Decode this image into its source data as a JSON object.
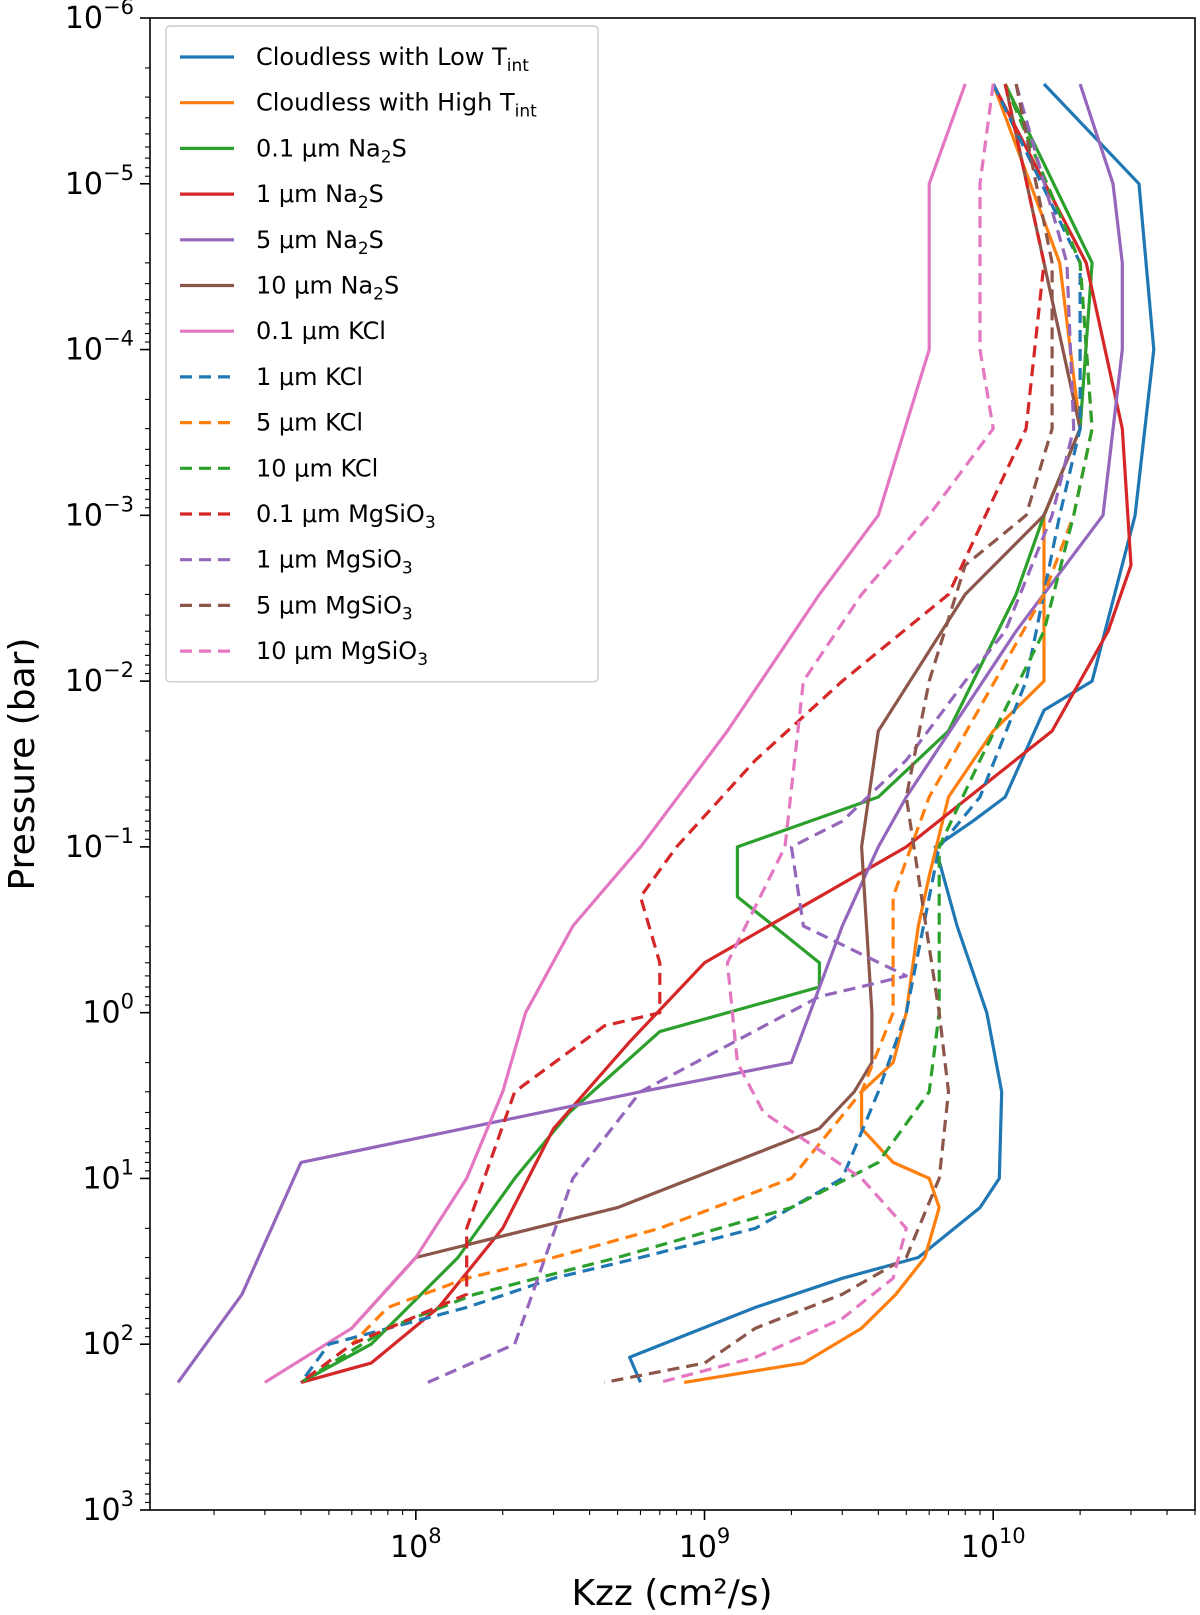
{
  "chart_data": {
    "type": "line",
    "title": "",
    "xlabel": "Kzz (cm²/s)",
    "ylabel": "Pressure (bar)",
    "xscale": "log",
    "yscale": "log",
    "xlim": [
      12000000,
      50000000000
    ],
    "ylim": [
      1000,
      1e-06
    ],
    "y_inverted": true,
    "x_ticks": [
      {
        "value": 100000000,
        "base": "10",
        "exp": "8"
      },
      {
        "value": 1000000000,
        "base": "10",
        "exp": "9"
      },
      {
        "value": 10000000000,
        "base": "10",
        "exp": "10"
      }
    ],
    "y_ticks": [
      {
        "value": 1e-06,
        "base": "10",
        "exp": "−6"
      },
      {
        "value": 1e-05,
        "base": "10",
        "exp": "−5"
      },
      {
        "value": 0.0001,
        "base": "10",
        "exp": "−4"
      },
      {
        "value": 0.001,
        "base": "10",
        "exp": "−3"
      },
      {
        "value": 0.01,
        "base": "10",
        "exp": "−2"
      },
      {
        "value": 0.1,
        "base": "10",
        "exp": "−1"
      },
      {
        "value": 1,
        "base": "10",
        "exp": "0"
      },
      {
        "value": 10,
        "base": "10",
        "exp": "1"
      },
      {
        "value": 100,
        "base": "10",
        "exp": "2"
      },
      {
        "value": 1000,
        "base": "10",
        "exp": "3"
      }
    ],
    "legend_position": "top-left",
    "series": [
      {
        "name": "Cloudless with Low T_int",
        "label_main": "Cloudless with Low T",
        "label_sub": "int",
        "color": "#1f77b4",
        "dash": false,
        "kzz": [
          15000000000.0,
          32000000000.0,
          36000000000.0,
          31000000000.0,
          22000000000.0,
          15000000000.0,
          11000000000.0,
          8500000000.0,
          6300000000.0,
          7500000000.0,
          9500000000.0,
          10700000000.0,
          10500000000.0,
          9000000000.0,
          5500000000.0,
          3000000000.0,
          1500000000.0,
          550000000.0,
          600000000.0
        ],
        "p": [
          2.5e-06,
          1e-05,
          0.0001,
          0.001,
          0.01,
          0.015,
          0.05,
          0.07,
          0.1,
          0.3,
          1,
          3,
          10,
          15,
          30,
          40,
          60,
          120,
          170
        ]
      },
      {
        "name": "Cloudless with High T_int",
        "label_main": "Cloudless with High T",
        "label_sub": "int",
        "color": "#ff7f0e",
        "dash": false,
        "kzz": [
          10000000000.0,
          17000000000.0,
          20000000000.0,
          15000000000.0,
          15000000000.0,
          10000000000.0,
          7000000000.0,
          6000000000.0,
          5500000000.0,
          5000000000.0,
          4500000000.0,
          3500000000.0,
          3500000000.0,
          4500000000.0,
          6000000000.0,
          6500000000.0,
          5800000000.0,
          4600000000.0,
          3500000000.0,
          2200000000.0,
          850000000.0
        ],
        "p": [
          2.5e-06,
          3e-05,
          0.0003,
          0.001,
          0.01,
          0.02,
          0.05,
          0.15,
          0.3,
          1,
          2,
          3,
          5,
          8,
          10,
          15,
          30,
          50,
          80,
          130,
          170
        ]
      },
      {
        "name": "0.1 μm Na2S",
        "label_main": "0.1 μm Na",
        "label_sub": "2",
        "label_tail": "S",
        "color": "#2ca02c",
        "dash": false,
        "kzz": [
          11000000000.0,
          22000000000.0,
          20000000000.0,
          15000000000.0,
          12000000000.0,
          7000000000.0,
          4000000000.0,
          1300000000.0,
          1300000000.0,
          2500000000.0,
          2500000000.0,
          700000000.0,
          340000000.0,
          220000000.0,
          140000000.0,
          70000000.0,
          40000000.0
        ],
        "p": [
          2.5e-06,
          3e-05,
          0.0003,
          0.001,
          0.003,
          0.02,
          0.05,
          0.1,
          0.2,
          0.5,
          0.7,
          1.3,
          4,
          10,
          30,
          100,
          170
        ]
      },
      {
        "name": "1 μm Na2S",
        "label_main": "1 μm Na",
        "label_sub": "2",
        "label_tail": "S",
        "color": "#d62728",
        "dash": false,
        "kzz": [
          10000000000.0,
          21000000000.0,
          28000000000.0,
          30000000000.0,
          25000000000.0,
          16000000000.0,
          5000000000.0,
          2500000000.0,
          1000000000.0,
          550000000.0,
          300000000.0,
          200000000.0,
          120000000.0,
          70000000.0,
          40000000.0
        ],
        "p": [
          2.5e-06,
          3e-05,
          0.0003,
          0.002,
          0.005,
          0.02,
          0.1,
          0.2,
          0.5,
          1.5,
          5,
          20,
          60,
          130,
          170
        ]
      },
      {
        "name": "5 μm Na2S",
        "label_main": "5 μm Na",
        "label_sub": "2",
        "label_tail": "S",
        "color": "#9467bd",
        "dash": false,
        "kzz": [
          20000000000.0,
          26000000000.0,
          28000000000.0,
          28000000000.0,
          24000000000.0,
          12000000000.0,
          5000000000.0,
          4000000000.0,
          3000000000.0,
          2000000000.0,
          600000000.0,
          40000000.0,
          25000000.0,
          15000000.0
        ],
        "p": [
          2.5e-06,
          1e-05,
          3e-05,
          0.0001,
          0.001,
          0.005,
          0.05,
          0.1,
          0.3,
          2,
          3,
          8,
          50,
          170
        ]
      },
      {
        "name": "10 μm Na2S",
        "label_main": "10 μm Na",
        "label_sub": "2",
        "label_tail": "S",
        "color": "#8c564b",
        "dash": false,
        "kzz": [
          11000000000.0,
          15000000000.0,
          20000000000.0,
          15000000000.0,
          8000000000.0,
          4000000000.0,
          3500000000.0,
          3800000000.0,
          3800000000.0,
          3300000000.0,
          2500000000.0,
          500000000.0,
          100000000.0,
          60000000.0
        ],
        "p": [
          2.5e-06,
          3e-05,
          0.0003,
          0.001,
          0.003,
          0.02,
          0.1,
          1,
          2,
          3,
          5,
          15,
          30,
          80
        ]
      },
      {
        "name": "0.1 μm KCl",
        "label_main": "0.1 μm KCl",
        "color": "#e377c2",
        "dash": false,
        "kzz": [
          8000000000.0,
          6000000000.0,
          6000000000.0,
          4000000000.0,
          2500000000.0,
          1200000000.0,
          600000000.0,
          350000000.0,
          240000000.0,
          200000000.0,
          150000000.0,
          100000000.0,
          60000000.0,
          30000000.0
        ],
        "p": [
          2.5e-06,
          1e-05,
          0.0001,
          0.001,
          0.003,
          0.02,
          0.1,
          0.3,
          1,
          3,
          10,
          30,
          80,
          170
        ]
      },
      {
        "name": "1 μm KCl",
        "label_main": "1 μm KCl",
        "color": "#1f77b4",
        "dash": true,
        "kzz": [
          10000000000.0,
          20000000000.0,
          20000000000.0,
          17000000000.0,
          13000000000.0,
          9000000000.0,
          6500000000.0,
          5000000000.0,
          4000000000.0,
          3000000000.0,
          1500000000.0,
          600000000.0,
          300000000.0,
          150000000.0,
          50000000.0,
          40000000.0
        ],
        "p": [
          2.5e-06,
          3e-05,
          0.0003,
          0.001,
          0.01,
          0.05,
          0.1,
          1,
          3,
          10,
          20,
          30,
          40,
          60,
          100,
          170
        ]
      },
      {
        "name": "5 μm KCl",
        "label_main": "5 μm KCl",
        "color": "#ff7f0e",
        "dash": true,
        "kzz": [
          11000000000.0,
          20000000000.0,
          22000000000.0,
          19000000000.0,
          15000000000.0,
          6000000000.0,
          4500000000.0,
          4500000000.0,
          3500000000.0,
          2000000000.0,
          700000000.0,
          300000000.0,
          150000000.0,
          80000000.0,
          60000000.0
        ],
        "p": [
          2.5e-06,
          3e-05,
          0.0003,
          0.001,
          0.003,
          0.05,
          0.2,
          1,
          3,
          10,
          20,
          30,
          40,
          60,
          100
        ]
      },
      {
        "name": "10 μm KCl",
        "label_main": "10 μm KCl",
        "color": "#2ca02c",
        "dash": true,
        "kzz": [
          11000000000.0,
          20000000000.0,
          22000000000.0,
          19000000000.0,
          15000000000.0,
          9000000000.0,
          6500000000.0,
          6500000000.0,
          6500000000.0,
          6000000000.0,
          4000000000.0,
          2000000000.0,
          500000000.0,
          160000000.0,
          80000000.0,
          40000000.0
        ],
        "p": [
          2.5e-06,
          3e-05,
          0.0003,
          0.001,
          0.005,
          0.03,
          0.1,
          0.5,
          1,
          3,
          8,
          15,
          30,
          50,
          80,
          170
        ]
      },
      {
        "name": "0.1 μm MgSiO3",
        "label_main": "0.1 μm MgSiO",
        "label_sub": "3",
        "color": "#d62728",
        "dash": true,
        "kzz": [
          11000000000.0,
          15000000000.0,
          13000000000.0,
          7000000000.0,
          3000000000.0,
          1500000000.0,
          800000000.0,
          600000000.0,
          700000000.0,
          700000000.0,
          450000000.0,
          220000000.0,
          150000000.0,
          150000000.0,
          60000000.0,
          40000000.0
        ],
        "p": [
          2.5e-06,
          3e-05,
          0.0003,
          0.003,
          0.01,
          0.03,
          0.1,
          0.2,
          0.5,
          1,
          1.2,
          3,
          20,
          50,
          100,
          170
        ]
      },
      {
        "name": "1 μm MgSiO3",
        "label_main": "1 μm MgSiO",
        "label_sub": "3",
        "color": "#9467bd",
        "dash": true,
        "kzz": [
          12000000000.0,
          18000000000.0,
          19000000000.0,
          16000000000.0,
          11000000000.0,
          8000000000.0,
          5000000000.0,
          3000000000.0,
          2000000000.0,
          2200000000.0,
          5000000000.0,
          2500000000.0,
          600000000.0,
          350000000.0,
          220000000.0,
          110000000.0
        ],
        "p": [
          2.5e-06,
          3e-05,
          0.0003,
          0.001,
          0.005,
          0.01,
          0.03,
          0.07,
          0.1,
          0.3,
          0.6,
          0.8,
          3,
          10,
          100,
          170
        ]
      },
      {
        "name": "5 μm MgSiO3",
        "label_main": "5 μm MgSiO",
        "label_sub": "3",
        "color": "#8c564b",
        "dash": true,
        "kzz": [
          12000000000.0,
          16000000000.0,
          16000000000.0,
          13000000000.0,
          8000000000.0,
          6000000000.0,
          5000000000.0,
          6500000000.0,
          7000000000.0,
          6500000000.0,
          5000000000.0,
          3000000000.0,
          1500000000.0,
          1000000000.0,
          450000000.0
        ],
        "p": [
          2.5e-06,
          3e-05,
          0.0003,
          0.001,
          0.002,
          0.01,
          0.05,
          1,
          3,
          10,
          30,
          50,
          80,
          130,
          170
        ]
      },
      {
        "name": "10 μm MgSiO3",
        "label_main": "10 μm MgSiO",
        "label_sub": "3",
        "color": "#e377c2",
        "dash": true,
        "kzz": [
          10000000000.0,
          9000000000.0,
          9000000000.0,
          10000000000.0,
          6000000000.0,
          3500000000.0,
          2200000000.0,
          1900000000.0,
          1200000000.0,
          1300000000.0,
          1600000000.0,
          3500000000.0,
          5000000000.0,
          4500000000.0,
          3000000000.0,
          1500000000.0,
          700000000.0
        ],
        "p": [
          2.5e-06,
          1e-05,
          0.0001,
          0.0003,
          0.001,
          0.003,
          0.01,
          0.1,
          0.5,
          2,
          4,
          10,
          20,
          40,
          70,
          120,
          170
        ]
      }
    ]
  }
}
